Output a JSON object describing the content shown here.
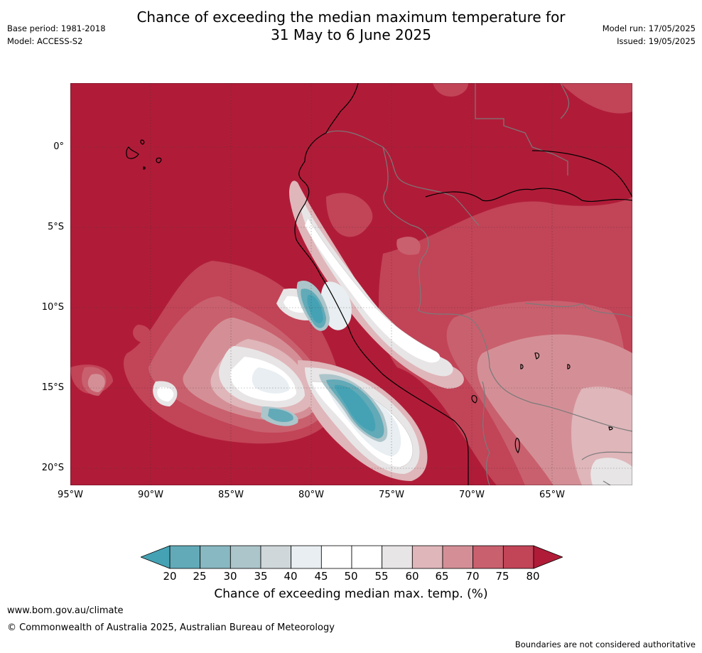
{
  "header": {
    "title_line1": "Chance of exceeding the median maximum temperature for",
    "title_line2": "31 May to 6 June 2025",
    "base_period": "Base period: 1981-2018",
    "model": "Model: ACCESS-S2",
    "model_run": "Model run: 17/05/2025",
    "issued": "Issued: 19/05/2025"
  },
  "map": {
    "region": "Western South America",
    "lat_labels": [
      "0°",
      "5°S",
      "10°S",
      "15°S",
      "20°S"
    ],
    "lon_labels": [
      "95°W",
      "90°W",
      "85°W",
      "80°W",
      "75°W",
      "70°W",
      "65°W"
    ],
    "grid": true,
    "colors": {
      "c80": "#b01c38",
      "c75": "#c24457",
      "c70": "#c9606e",
      "c65": "#d48f96",
      "c60": "#dfb6ba",
      "c55": "#e8e5e6",
      "c50": "#ffffff",
      "c45": "#e8eef1",
      "c40": "#cfd7da",
      "c35": "#acc5ca",
      "c30": "#88b8c1",
      "c25": "#62aab8",
      "c20": "#45a2b4"
    }
  },
  "colorbar": {
    "ticks": [
      "20",
      "25",
      "30",
      "35",
      "40",
      "45",
      "50",
      "55",
      "60",
      "65",
      "70",
      "75",
      "80"
    ],
    "colors": [
      "#45a2b4",
      "#62aab8",
      "#88b8c1",
      "#acc5ca",
      "#cfd7da",
      "#e8eef1",
      "#ffffff",
      "#ffffff",
      "#e8e5e6",
      "#dfb6ba",
      "#d48f96",
      "#c9606e",
      "#c24457",
      "#b01c38"
    ],
    "label": "Chance of exceeding median max. temp. (%)"
  },
  "footer": {
    "url": "www.bom.gov.au/climate",
    "copyright": "© Commonwealth of Australia 2025, Australian Bureau of Meteorology",
    "disclaimer": "Boundaries are not considered authoritative"
  }
}
